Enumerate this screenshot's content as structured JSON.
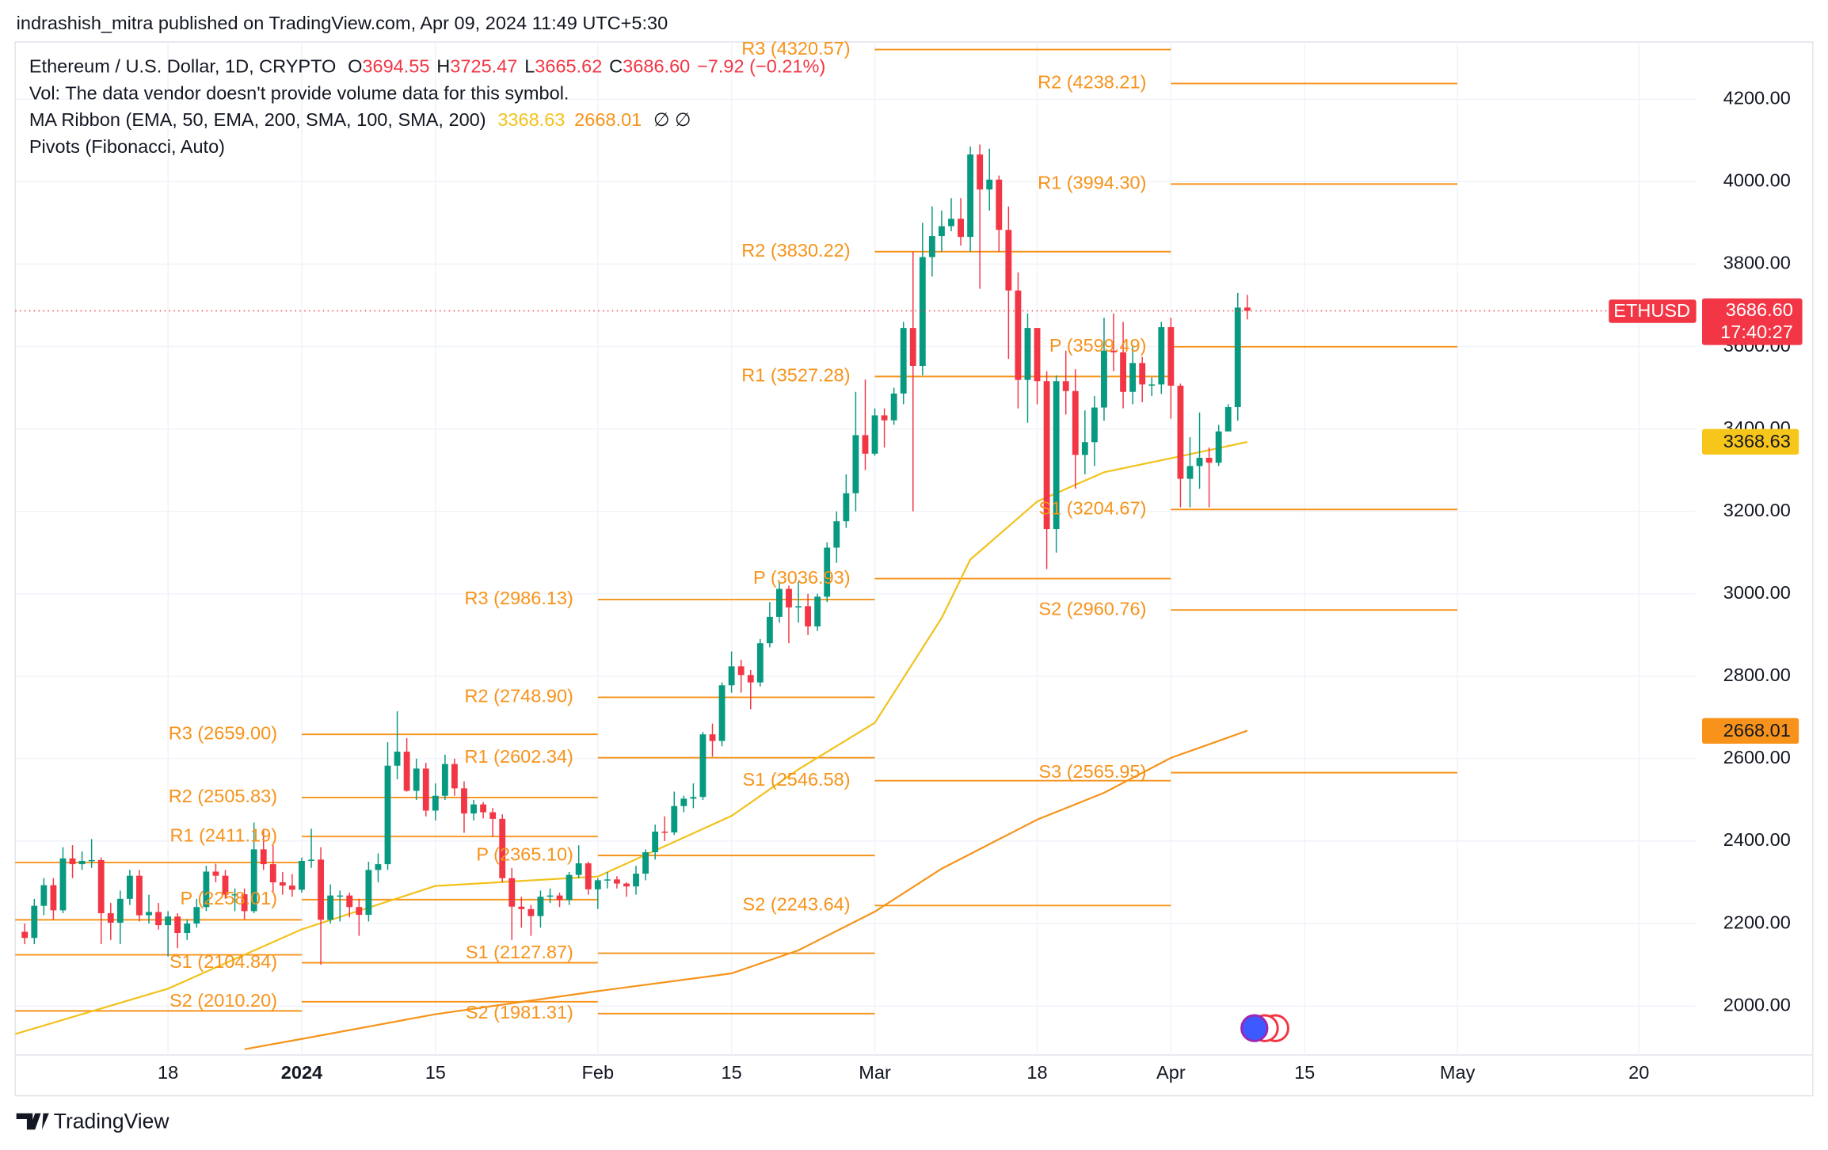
{
  "header": {
    "published": "indrashish_mitra published on TradingView.com, Apr 09, 2024 11:49 UTC+5:30",
    "symbol": "Ethereum / U.S. Dollar, 1D, CRYPTO",
    "ohlc": [
      {
        "key": "O",
        "value": "3694.55"
      },
      {
        "key": "H",
        "value": "3725.47"
      },
      {
        "key": "L",
        "value": "3665.62"
      },
      {
        "key": "C",
        "value": "3686.60"
      }
    ],
    "change": "−7.92 (−0.21%)",
    "vol": "Vol: The data vendor doesn't provide volume data for this symbol.",
    "ribbon": "MA Ribbon (EMA, 50, EMA, 200, SMA, 100, SMA, 200)",
    "ribbon_values": [
      "3368.63",
      "2668.01"
    ],
    "ribbon_empty": "∅  ∅",
    "pivots": "Pivots (Fibonacci, Auto)",
    "badges": {
      "symbol": "ETHUSD",
      "price": "3686.60",
      "countdown": "17:40:27",
      "ma1": "3368.63",
      "ma2": "2668.01"
    },
    "brand": "TradingView"
  },
  "chart_data": {
    "type": "candlestick",
    "up_color": "#089981",
    "down_color": "#f23645",
    "grid": true,
    "xlim": [
      "2023-12-02",
      "2024-05-26"
    ],
    "ylim": [
      1881,
      4339
    ],
    "yticks": [
      {
        "value": 2000,
        "label": "2000.00"
      },
      {
        "value": 2200,
        "label": "2200.00"
      },
      {
        "value": 2400,
        "label": "2400.00"
      },
      {
        "value": 2600,
        "label": "2600.00"
      },
      {
        "value": 2800,
        "label": "2800.00"
      },
      {
        "value": 3000,
        "label": "3000.00"
      },
      {
        "value": 3200,
        "label": "3200.00"
      },
      {
        "value": 3400,
        "label": "3400.00"
      },
      {
        "value": 3600,
        "label": "3600.00"
      },
      {
        "value": 3800,
        "label": "3800.00"
      },
      {
        "value": 4000,
        "label": "4000.00"
      },
      {
        "value": 4200,
        "label": "4200.00"
      }
    ],
    "xticks": [
      {
        "value": "2023-12-18",
        "label": "18"
      },
      {
        "value": "2024-01-01",
        "label": "2024"
      },
      {
        "value": "2024-01-15",
        "label": "15"
      },
      {
        "value": "2024-02-01",
        "label": "Feb"
      },
      {
        "value": "2024-02-15",
        "label": "15"
      },
      {
        "value": "2024-03-01",
        "label": "Mar"
      },
      {
        "value": "2024-03-18",
        "label": "18"
      },
      {
        "value": "2024-04-01",
        "label": "Apr"
      },
      {
        "value": "2024-04-15",
        "label": "15"
      },
      {
        "value": "2024-05-01",
        "label": "May"
      },
      {
        "value": "2024-05-20",
        "label": "20"
      }
    ],
    "x": [
      "2023-12-03",
      "2023-12-04",
      "2023-12-05",
      "2023-12-06",
      "2023-12-07",
      "2023-12-08",
      "2023-12-09",
      "2023-12-10",
      "2023-12-11",
      "2023-12-12",
      "2023-12-13",
      "2023-12-14",
      "2023-12-15",
      "2023-12-16",
      "2023-12-17",
      "2023-12-18",
      "2023-12-19",
      "2023-12-20",
      "2023-12-21",
      "2023-12-22",
      "2023-12-23",
      "2023-12-24",
      "2023-12-25",
      "2023-12-26",
      "2023-12-27",
      "2023-12-28",
      "2023-12-29",
      "2023-12-30",
      "2023-12-31",
      "2024-01-01",
      "2024-01-02",
      "2024-01-03",
      "2024-01-04",
      "2024-01-05",
      "2024-01-06",
      "2024-01-07",
      "2024-01-08",
      "2024-01-09",
      "2024-01-10",
      "2024-01-11",
      "2024-01-12",
      "2024-01-13",
      "2024-01-14",
      "2024-01-15",
      "2024-01-16",
      "2024-01-17",
      "2024-01-18",
      "2024-01-19",
      "2024-01-20",
      "2024-01-21",
      "2024-01-22",
      "2024-01-23",
      "2024-01-24",
      "2024-01-25",
      "2024-01-26",
      "2024-01-27",
      "2024-01-28",
      "2024-01-29",
      "2024-01-30",
      "2024-01-31",
      "2024-02-01",
      "2024-02-02",
      "2024-02-03",
      "2024-02-04",
      "2024-02-05",
      "2024-02-06",
      "2024-02-07",
      "2024-02-08",
      "2024-02-09",
      "2024-02-10",
      "2024-02-11",
      "2024-02-12",
      "2024-02-13",
      "2024-02-14",
      "2024-02-15",
      "2024-02-16",
      "2024-02-17",
      "2024-02-18",
      "2024-02-19",
      "2024-02-20",
      "2024-02-21",
      "2024-02-22",
      "2024-02-23",
      "2024-02-24",
      "2024-02-25",
      "2024-02-26",
      "2024-02-27",
      "2024-02-28",
      "2024-02-29",
      "2024-03-01",
      "2024-03-02",
      "2024-03-03",
      "2024-03-04",
      "2024-03-05",
      "2024-03-06",
      "2024-03-07",
      "2024-03-08",
      "2024-03-09",
      "2024-03-10",
      "2024-03-11",
      "2024-03-12",
      "2024-03-13",
      "2024-03-14",
      "2024-03-15",
      "2024-03-16",
      "2024-03-17",
      "2024-03-18",
      "2024-03-19",
      "2024-03-20",
      "2024-03-21",
      "2024-03-22",
      "2024-03-23",
      "2024-03-24",
      "2024-03-25",
      "2024-03-26",
      "2024-03-27",
      "2024-03-28",
      "2024-03-29",
      "2024-03-30",
      "2024-03-31",
      "2024-04-01",
      "2024-04-02",
      "2024-04-03",
      "2024-04-04",
      "2024-04-05",
      "2024-04-06",
      "2024-04-07",
      "2024-04-08",
      "2024-04-09"
    ],
    "open": [
      2180,
      2165,
      2243,
      2293,
      2232,
      2358,
      2344,
      2352,
      2354,
      2225,
      2202,
      2260,
      2316,
      2220,
      2228,
      2196,
      2217,
      2177,
      2200,
      2240,
      2326,
      2316,
      2270,
      2271,
      2230,
      2380,
      2344,
      2300,
      2292,
      2282,
      2352,
      2355,
      2209,
      2268,
      2268,
      2240,
      2221,
      2330,
      2344,
      2583,
      2617,
      2522,
      2576,
      2474,
      2510,
      2587,
      2528,
      2467,
      2489,
      2470,
      2454,
      2310,
      2241,
      2235,
      2218,
      2265,
      2268,
      2257,
      2318,
      2346,
      2283,
      2305,
      2307,
      2297,
      2290,
      2321,
      2373,
      2423,
      2421,
      2485,
      2503,
      2507,
      2659,
      2643,
      2778,
      2824,
      2803,
      2785,
      2880,
      2944,
      3012,
      2967,
      2970,
      2921,
      2993,
      3112,
      3176,
      3244,
      3385,
      3340,
      3433,
      3421,
      3486,
      3645,
      3553,
      3817,
      3868,
      3892,
      3910,
      3866,
      4066,
      3981,
      4005,
      3883,
      3736,
      3519,
      3645,
      3516,
      3157,
      3516,
      3492,
      3337,
      3368,
      3452,
      3590,
      3586,
      3490,
      3560,
      3508,
      3508,
      3647,
      3505,
      3279,
      3310,
      3330,
      3318,
      3394,
      3453,
      3694.55
    ],
    "high": [
      2200,
      2260,
      2310,
      2310,
      2385,
      2390,
      2375,
      2405,
      2360,
      2250,
      2280,
      2330,
      2330,
      2270,
      2250,
      2230,
      2225,
      2210,
      2260,
      2340,
      2345,
      2330,
      2285,
      2285,
      2445,
      2430,
      2390,
      2325,
      2320,
      2360,
      2430,
      2385,
      2295,
      2280,
      2275,
      2260,
      2350,
      2370,
      2640,
      2715,
      2650,
      2600,
      2590,
      2540,
      2610,
      2600,
      2545,
      2500,
      2495,
      2480,
      2465,
      2335,
      2265,
      2245,
      2280,
      2285,
      2275,
      2325,
      2390,
      2350,
      2310,
      2325,
      2315,
      2300,
      2340,
      2380,
      2440,
      2460,
      2520,
      2510,
      2540,
      2665,
      2685,
      2785,
      2860,
      2840,
      2815,
      2890,
      2980,
      3030,
      3020,
      3030,
      3000,
      3000,
      3125,
      3200,
      3290,
      3490,
      3520,
      3450,
      3450,
      3500,
      3660,
      3830,
      3900,
      3940,
      3930,
      3960,
      3960,
      4085,
      4090,
      4080,
      4015,
      3940,
      3780,
      3680,
      3645,
      3540,
      3530,
      3590,
      3545,
      3445,
      3480,
      3670,
      3680,
      3660,
      3600,
      3575,
      3525,
      3660,
      3670,
      3510,
      3380,
      3440,
      3355,
      3410,
      3460,
      3730,
      3725.47
    ],
    "low": [
      2150,
      2150,
      2220,
      2210,
      2225,
      2310,
      2330,
      2335,
      2150,
      2160,
      2150,
      2245,
      2205,
      2200,
      2185,
      2120,
      2140,
      2160,
      2190,
      2230,
      2300,
      2260,
      2230,
      2210,
      2225,
      2330,
      2275,
      2270,
      2265,
      2275,
      2335,
      2100,
      2200,
      2205,
      2215,
      2170,
      2205,
      2300,
      2330,
      2550,
      2520,
      2500,
      2460,
      2450,
      2500,
      2510,
      2420,
      2450,
      2455,
      2410,
      2300,
      2160,
      2190,
      2170,
      2190,
      2250,
      2240,
      2245,
      2310,
      2270,
      2235,
      2285,
      2285,
      2265,
      2270,
      2305,
      2355,
      2400,
      2415,
      2470,
      2480,
      2500,
      2605,
      2630,
      2760,
      2760,
      2720,
      2775,
      2870,
      2930,
      2880,
      2930,
      2900,
      2910,
      2980,
      3075,
      3160,
      3200,
      3300,
      3335,
      3355,
      3410,
      3460,
      3200,
      3530,
      3770,
      3830,
      3880,
      3845,
      3830,
      3740,
      3930,
      3830,
      3570,
      3450,
      3415,
      3460,
      3060,
      3100,
      3435,
      3255,
      3290,
      3310,
      3420,
      3540,
      3450,
      3460,
      3465,
      3480,
      3485,
      3425,
      3210,
      3210,
      3255,
      3210,
      3310,
      3400,
      3420,
      3665.62
    ],
    "close": [
      2165,
      2243,
      2293,
      2232,
      2358,
      2344,
      2352,
      2354,
      2225,
      2202,
      2260,
      2316,
      2220,
      2228,
      2196,
      2217,
      2177,
      2200,
      2240,
      2326,
      2316,
      2270,
      2271,
      2230,
      2380,
      2344,
      2300,
      2292,
      2282,
      2352,
      2355,
      2209,
      2268,
      2268,
      2240,
      2221,
      2330,
      2344,
      2583,
      2617,
      2522,
      2576,
      2474,
      2510,
      2587,
      2528,
      2467,
      2489,
      2470,
      2454,
      2310,
      2241,
      2235,
      2218,
      2265,
      2268,
      2257,
      2318,
      2346,
      2283,
      2305,
      2307,
      2297,
      2290,
      2321,
      2373,
      2423,
      2421,
      2485,
      2503,
      2507,
      2659,
      2643,
      2778,
      2824,
      2803,
      2785,
      2880,
      2944,
      3012,
      2967,
      2970,
      2921,
      2993,
      3112,
      3176,
      3244,
      3385,
      3340,
      3433,
      3421,
      3486,
      3645,
      3553,
      3817,
      3868,
      3892,
      3910,
      3866,
      4066,
      3981,
      4005,
      3883,
      3736,
      3519,
      3645,
      3516,
      3157,
      3516,
      3492,
      3337,
      3368,
      3452,
      3590,
      3586,
      3490,
      3560,
      3508,
      3508,
      3647,
      3505,
      3279,
      3310,
      3330,
      3318,
      3394,
      3453,
      3694.5,
      3686.6
    ],
    "lines": [
      {
        "color": "#f2c21b",
        "x": [
          "2023-12-02",
          "2023-12-18",
          "2024-01-01",
          "2024-01-15",
          "2024-02-01",
          "2024-02-15",
          "2024-02-22",
          "2024-03-01",
          "2024-03-08",
          "2024-03-11",
          "2024-03-18",
          "2024-03-25",
          "2024-04-01",
          "2024-04-09"
        ],
        "values": [
          1932,
          2042,
          2186,
          2291,
          2314,
          2461,
          2574,
          2687,
          2941,
          3083,
          3224,
          3295,
          3329,
          3368.63
        ]
      },
      {
        "color": "#f7931a",
        "x": [
          "2023-12-26",
          "2024-01-01",
          "2024-01-15",
          "2024-02-01",
          "2024-02-15",
          "2024-02-22",
          "2024-03-01",
          "2024-03-08",
          "2024-03-18",
          "2024-03-25",
          "2024-04-01",
          "2024-04-09"
        ],
        "values": [
          1895,
          1920,
          1980,
          2036,
          2079,
          2135,
          2229,
          2333,
          2452,
          2517,
          2602,
          2668.01
        ]
      }
    ],
    "pivot_color": "#f7931a",
    "pivots": [
      {
        "start": "2023-12-01",
        "end": "2024-01-01",
        "levels": [
          {
            "value": 2348
          },
          {
            "value": 2209
          },
          {
            "value": 2124
          },
          {
            "value": 1988
          }
        ]
      },
      {
        "start": "2024-01-01",
        "end": "2024-02-01",
        "levels": [
          {
            "value": 2659,
            "label": "R3 (2659.00)"
          },
          {
            "value": 2505.83,
            "label": "R2 (2505.83)"
          },
          {
            "value": 2411.19,
            "label": "R1 (2411.19)"
          },
          {
            "value": 2258.01,
            "label": "P (2258.01)"
          },
          {
            "value": 2104.84,
            "label": "S1 (2104.84)"
          },
          {
            "value": 2010.2,
            "label": "S2 (2010.20)"
          }
        ]
      },
      {
        "start": "2024-02-01",
        "end": "2024-03-01",
        "levels": [
          {
            "value": 2986.13,
            "label": "R3 (2986.13)"
          },
          {
            "value": 2748.9,
            "label": "R2 (2748.90)"
          },
          {
            "value": 2602.34,
            "label": "R1 (2602.34)"
          },
          {
            "value": 2365.1,
            "label": "P (2365.10)"
          },
          {
            "value": 2127.87,
            "label": "S1 (2127.87)"
          },
          {
            "value": 1981.31,
            "label": "S2 (1981.31)"
          }
        ]
      },
      {
        "start": "2024-03-01",
        "end": "2024-04-01",
        "levels": [
          {
            "value": 4320.57,
            "label": "R3 (4320.57)"
          },
          {
            "value": 3830.22,
            "label": "R2 (3830.22)"
          },
          {
            "value": 3527.28,
            "label": "R1 (3527.28)"
          },
          {
            "value": 3036.93,
            "label": "P (3036.93)"
          },
          {
            "value": 2546.58,
            "label": "S1 (2546.58)"
          },
          {
            "value": 2243.64,
            "label": "S2 (2243.64)"
          }
        ]
      },
      {
        "start": "2024-04-01",
        "end": "2024-05-01",
        "levels": [
          {
            "value": 4238.21,
            "label": "R2 (4238.21)"
          },
          {
            "value": 3994.3,
            "label": "R1 (3994.30)"
          },
          {
            "value": 3599.49,
            "label": "P (3599.49)"
          },
          {
            "value": 3204.67,
            "label": "S1 (3204.67)"
          },
          {
            "value": 2960.76,
            "label": "S2 (2960.76)"
          },
          {
            "value": 2565.95,
            "label": "S3 (2565.95)"
          }
        ]
      }
    ]
  }
}
